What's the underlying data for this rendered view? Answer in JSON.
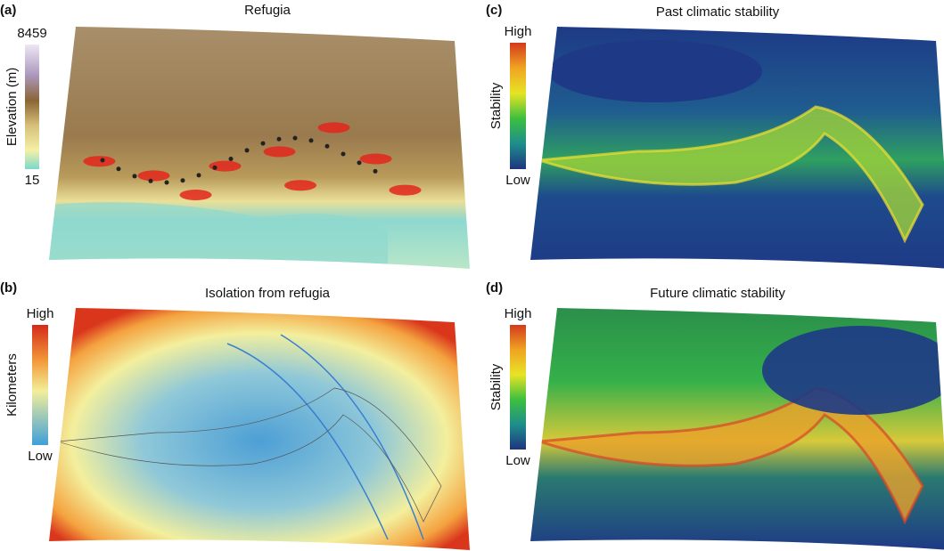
{
  "panels": [
    {
      "label": "(a)",
      "title": "Refugia",
      "legend": {
        "axis_label": "Elevation (m)",
        "top": "8459",
        "bottom": "15"
      }
    },
    {
      "label": "(b)",
      "title": "Isolation from refugia",
      "legend": {
        "axis_label": "Kilometers",
        "top": "High",
        "bottom": "Low"
      }
    },
    {
      "label": "(c)",
      "title": "Past climatic stability",
      "legend": {
        "axis_label": "Stability",
        "top": "High",
        "bottom": "Low"
      }
    },
    {
      "label": "(d)",
      "title": "Future climatic stability",
      "legend": {
        "axis_label": "Stability",
        "top": "High",
        "bottom": "Low"
      }
    }
  ]
}
